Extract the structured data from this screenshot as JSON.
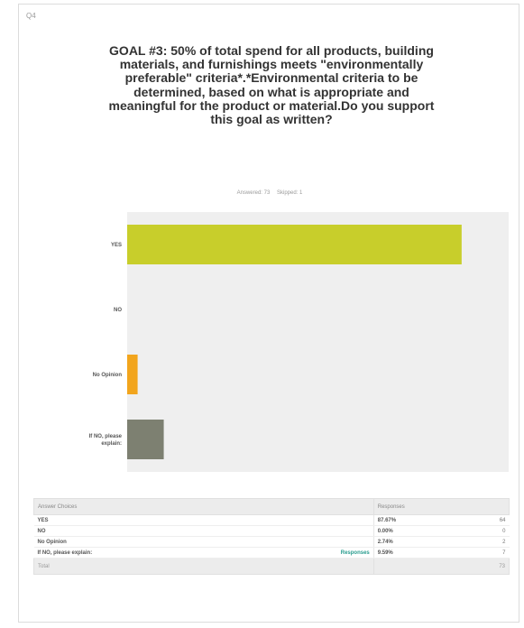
{
  "question_number": "Q4",
  "title": "GOAL #3:  50% of total spend for all products, building materials, and furnishings meets \"environmentally preferable\" criteria*.*Environmental criteria to be determined, based on what is appropriate and meaningful for the product or material.Do you support this goal as written?",
  "answered_text": "Answered: 73",
  "skipped_text": "Skipped: 1",
  "chart_data": {
    "type": "bar",
    "orientation": "horizontal",
    "categories": [
      "YES",
      "NO",
      "No Opinion",
      "If NO, please explain:"
    ],
    "values": [
      87.67,
      0.0,
      2.74,
      9.59
    ],
    "colors": [
      "#c8ce2b",
      "#c8ce2b",
      "#f2a51d",
      "#7d8071"
    ],
    "xlim": [
      0,
      100
    ],
    "x_ticks": [
      "0%",
      "10%",
      "20%",
      "30%",
      "40%",
      "50%",
      "60%",
      "70%",
      "80%",
      "90%",
      "100%"
    ],
    "grid": false
  },
  "table": {
    "headers": {
      "choice": "Answer Choices",
      "responses": "Responses"
    },
    "rows": [
      {
        "label": "YES",
        "link": "",
        "pct": "87.67%",
        "count": "64"
      },
      {
        "label": "NO",
        "link": "",
        "pct": "0.00%",
        "count": "0"
      },
      {
        "label": "No Opinion",
        "link": "",
        "pct": "2.74%",
        "count": "2"
      },
      {
        "label": "If NO, please explain:",
        "link": "Responses",
        "pct": "9.59%",
        "count": "7"
      }
    ],
    "total_label": "Total",
    "total_count": "73"
  }
}
